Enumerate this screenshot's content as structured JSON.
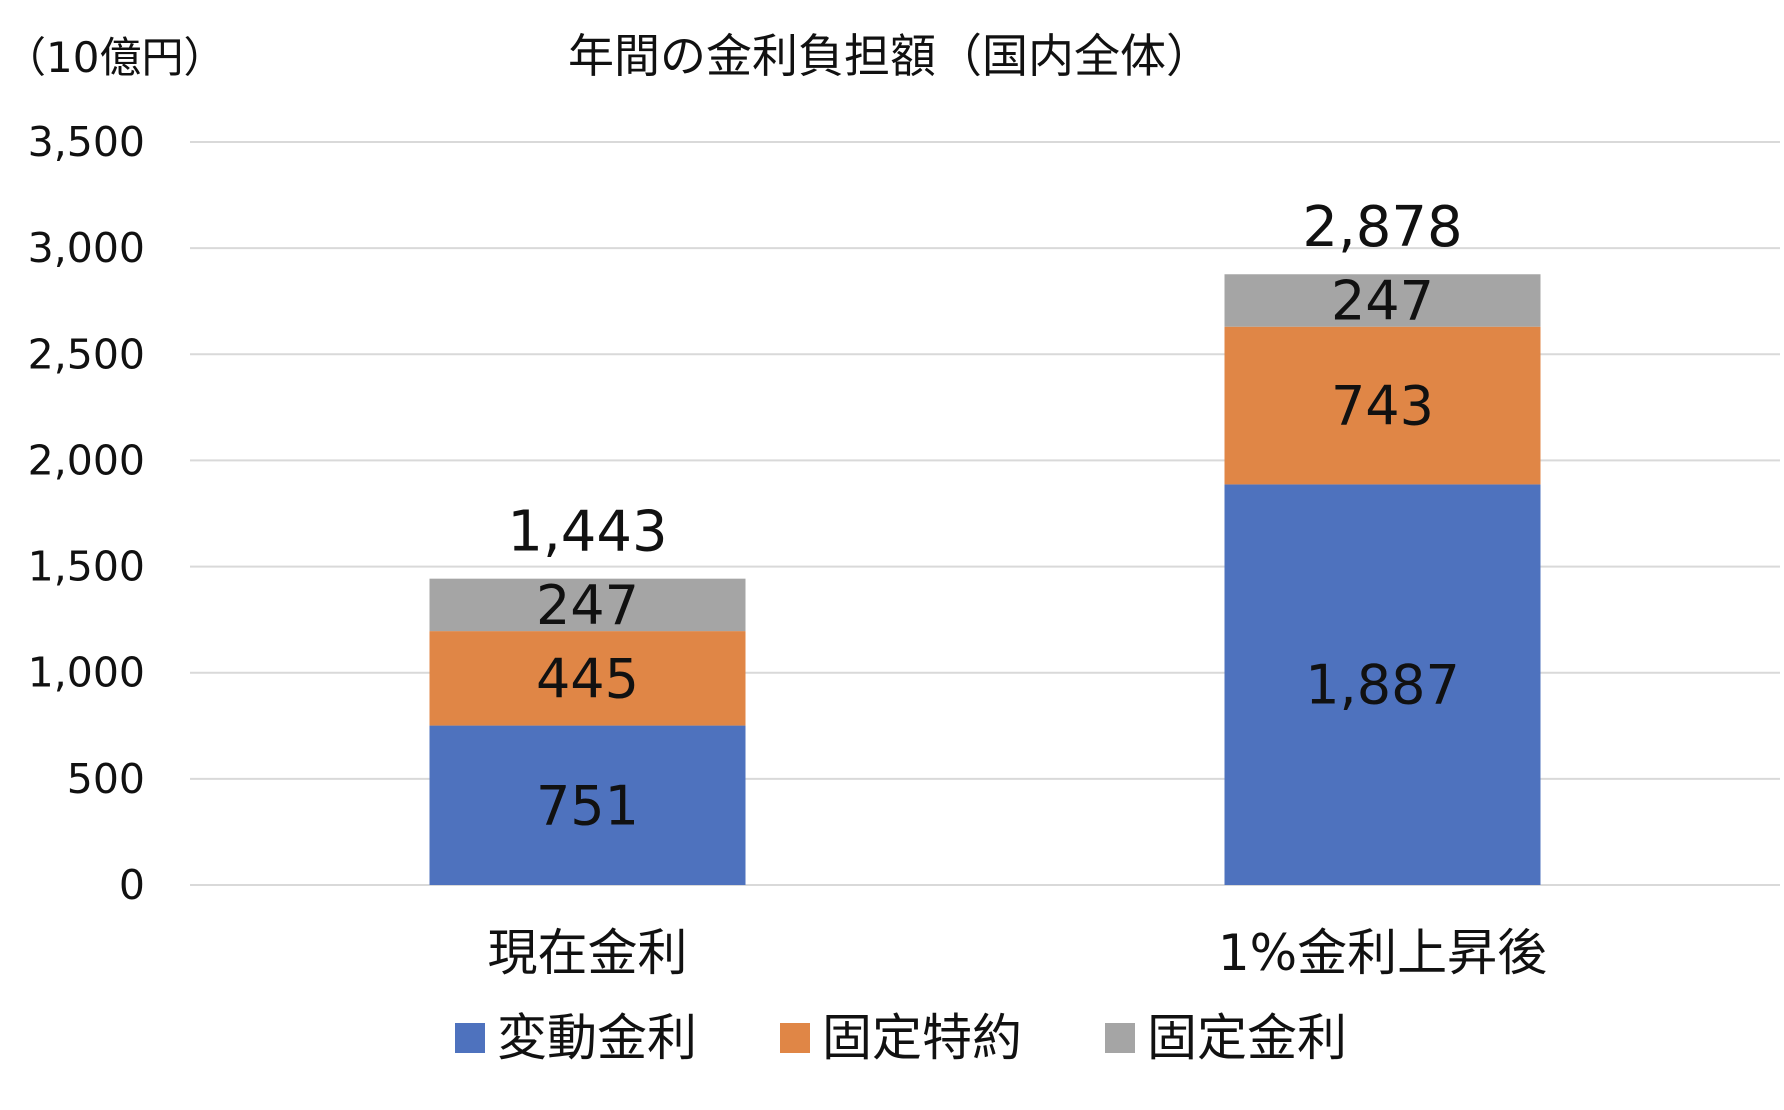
{
  "chart_data": {
    "type": "bar",
    "stacked": true,
    "title": "年間の金利負担額（国内全体）",
    "unit_label": "（10億円）",
    "categories": [
      "現在金利",
      "1%金利上昇後"
    ],
    "series": [
      {
        "name": "変動金利",
        "values": [
          751,
          1887
        ],
        "labels": [
          "751",
          "1,887"
        ],
        "color": "#4e72be"
      },
      {
        "name": "固定特約",
        "values": [
          445,
          743
        ],
        "labels": [
          "445",
          "743"
        ],
        "color": "#e08646"
      },
      {
        "name": "固定金利",
        "values": [
          247,
          247
        ],
        "labels": [
          "247",
          "247"
        ],
        "color": "#a5a5a5"
      }
    ],
    "totals": [
      1443,
      2878
    ],
    "total_labels": [
      "1,443",
      "2,878"
    ],
    "ylim": [
      0,
      3500
    ],
    "y_ticks": [
      0,
      500,
      1000,
      1500,
      2000,
      2500,
      3000,
      3500
    ],
    "y_tick_labels": [
      "0",
      "500",
      "1,000",
      "1,500",
      "2,000",
      "2,500",
      "3,000",
      "3,500"
    ],
    "grid": true,
    "legend_position": "bottom"
  }
}
